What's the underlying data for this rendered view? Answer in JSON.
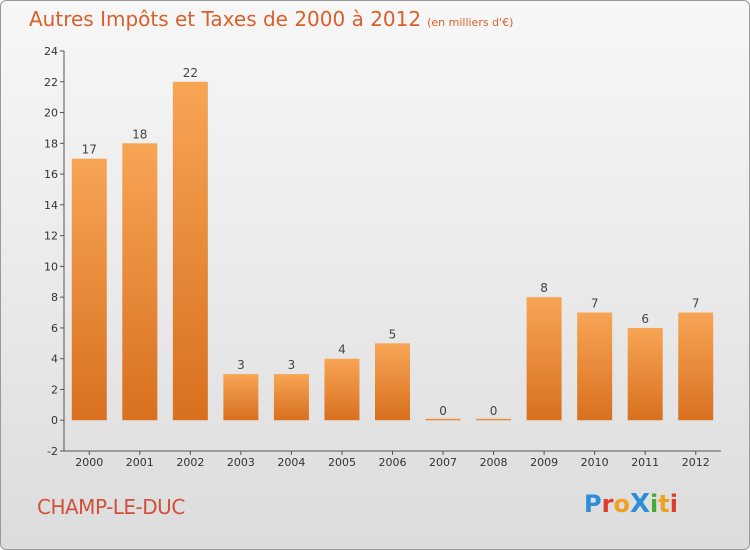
{
  "header": {
    "title": "Autres Impôts et Taxes de 2000 à 2012",
    "subtitle": "(en milliers d'€)"
  },
  "footer": {
    "commune": "CHAMP-LE-DUC",
    "logo_text": "Proxiti"
  },
  "colors": {
    "title": "#d9602a",
    "bar_top": "#f7a555",
    "bar_bottom": "#d8701f",
    "commune": "#d0503c"
  },
  "chart_data": {
    "type": "bar",
    "categories": [
      "2000",
      "2001",
      "2002",
      "2003",
      "2004",
      "2005",
      "2006",
      "2007",
      "2008",
      "2009",
      "2010",
      "2011",
      "2012"
    ],
    "values": [
      17,
      18,
      22,
      3,
      3,
      4,
      5,
      0,
      0,
      8,
      7,
      6,
      7
    ],
    "data_labels": [
      "17",
      "18",
      "22",
      "3",
      "3",
      "4",
      "5",
      "0",
      "0",
      "8",
      "7",
      "6",
      "7"
    ],
    "y_ticks": [
      "-2",
      "0",
      "2",
      "4",
      "6",
      "8",
      "10",
      "12",
      "14",
      "16",
      "18",
      "20",
      "22",
      "24"
    ],
    "ylim": [
      -2,
      24
    ],
    "grid": false,
    "legend": "none"
  }
}
